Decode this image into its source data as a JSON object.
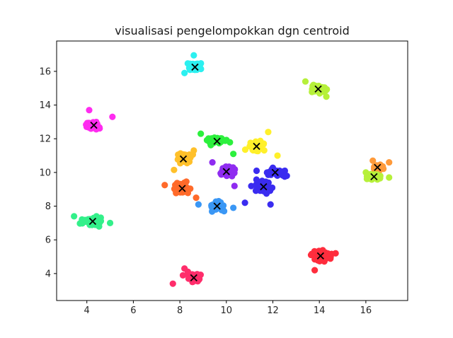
{
  "chart_data": {
    "type": "scatter",
    "title": "visualisasi pengelompokkan dgn centroid",
    "xlabel": "",
    "ylabel": "",
    "xlim": [
      2.7,
      17.8
    ],
    "ylim": [
      2.4,
      17.8
    ],
    "xticks": [
      4,
      6,
      8,
      10,
      12,
      14,
      16
    ],
    "yticks": [
      4,
      6,
      8,
      10,
      12,
      14,
      16
    ],
    "grid": false,
    "centroid_marker": "x",
    "centroid_color": "#000000",
    "clusters": [
      {
        "color": "#ff2d6b",
        "centroid": [
          8.6,
          3.75
        ],
        "spread": [
          0.32,
          0.28
        ],
        "extra_points": [
          [
            7.7,
            3.4
          ],
          [
            8.2,
            4.3
          ]
        ]
      },
      {
        "color": "#ff2d3d",
        "centroid": [
          14.05,
          5.05
        ],
        "spread": [
          0.38,
          0.28
        ],
        "extra_points": [
          [
            13.8,
            4.2
          ],
          [
            14.7,
            5.2
          ]
        ]
      },
      {
        "color": "#33f08a",
        "centroid": [
          4.25,
          7.1
        ],
        "spread": [
          0.38,
          0.22
        ],
        "extra_points": [
          [
            3.45,
            7.4
          ],
          [
            5.0,
            7.0
          ]
        ]
      },
      {
        "color": "#3a97f5",
        "centroid": [
          9.6,
          8.0
        ],
        "spread": [
          0.35,
          0.25
        ],
        "extra_points": [
          [
            10.3,
            7.9
          ],
          [
            8.8,
            8.1
          ]
        ]
      },
      {
        "color": "#ff6a2a",
        "centroid": [
          8.1,
          9.05
        ],
        "spread": [
          0.3,
          0.3
        ],
        "extra_points": [
          [
            7.35,
            9.25
          ],
          [
            8.7,
            8.5
          ]
        ]
      },
      {
        "color": "#3a2cf0",
        "centroid": [
          11.6,
          9.15
        ],
        "spread": [
          0.38,
          0.3
        ],
        "extra_points": [
          [
            10.8,
            8.2
          ],
          [
            11.9,
            8.1
          ]
        ]
      },
      {
        "color": "#3a2cf0",
        "centroid": [
          12.1,
          10.0
        ],
        "spread": [
          0.35,
          0.22
        ],
        "extra_points": [
          [
            11.3,
            10.1
          ],
          [
            12.6,
            9.8
          ]
        ]
      },
      {
        "color": "#8f2cf0",
        "centroid": [
          10.0,
          10.05
        ],
        "spread": [
          0.35,
          0.25
        ],
        "extra_points": [
          [
            10.35,
            9.2
          ],
          [
            9.4,
            10.6
          ]
        ]
      },
      {
        "color": "#ffc02a",
        "centroid": [
          8.15,
          10.8
        ],
        "spread": [
          0.3,
          0.3
        ],
        "extra_points": [
          [
            7.75,
            10.15
          ],
          [
            8.6,
            11.3
          ]
        ]
      },
      {
        "color": "#2cf03d",
        "centroid": [
          9.6,
          11.85
        ],
        "spread": [
          0.4,
          0.22
        ],
        "extra_points": [
          [
            8.9,
            12.3
          ],
          [
            10.3,
            11.1
          ]
        ]
      },
      {
        "color": "#fff02a",
        "centroid": [
          11.3,
          11.55
        ],
        "spread": [
          0.38,
          0.3
        ],
        "extra_points": [
          [
            12.2,
            11.0
          ],
          [
            11.8,
            12.4
          ]
        ]
      },
      {
        "color": "#ff9a3a",
        "centroid": [
          16.5,
          10.3
        ],
        "spread": [
          0.2,
          0.15
        ],
        "extra_points": [
          [
            17.0,
            10.6
          ],
          [
            16.3,
            10.7
          ]
        ]
      },
      {
        "color": "#b6f03a",
        "centroid": [
          16.35,
          9.75
        ],
        "spread": [
          0.22,
          0.18
        ],
        "extra_points": [
          [
            17.0,
            9.7
          ],
          [
            16.0,
            10.0
          ]
        ]
      },
      {
        "color": "#b6f03a",
        "centroid": [
          13.95,
          14.95
        ],
        "spread": [
          0.3,
          0.25
        ],
        "extra_points": [
          [
            13.4,
            15.4
          ],
          [
            14.3,
            14.5
          ]
        ]
      },
      {
        "color": "#ff2cf0",
        "centroid": [
          4.3,
          12.8
        ],
        "spread": [
          0.3,
          0.28
        ],
        "extra_points": [
          [
            5.1,
            13.3
          ],
          [
            4.1,
            13.7
          ]
        ]
      },
      {
        "color": "#2cf0f0",
        "centroid": [
          8.65,
          16.25
        ],
        "spread": [
          0.28,
          0.25
        ],
        "extra_points": [
          [
            8.6,
            16.95
          ],
          [
            8.2,
            15.9
          ]
        ]
      }
    ]
  }
}
